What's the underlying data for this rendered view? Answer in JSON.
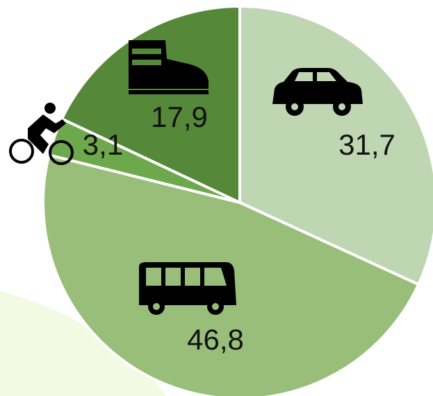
{
  "chart_data": {
    "type": "pie",
    "series": [
      {
        "values": [
          31.7,
          46.8,
          3.1,
          17.9
        ],
        "value_labels": [
          "31,7",
          "46,8",
          "3,1",
          "17,9"
        ],
        "colors": [
          "#bfd6b3",
          "#98be7a",
          "#6ea84c",
          "#558838"
        ]
      }
    ]
  }
}
